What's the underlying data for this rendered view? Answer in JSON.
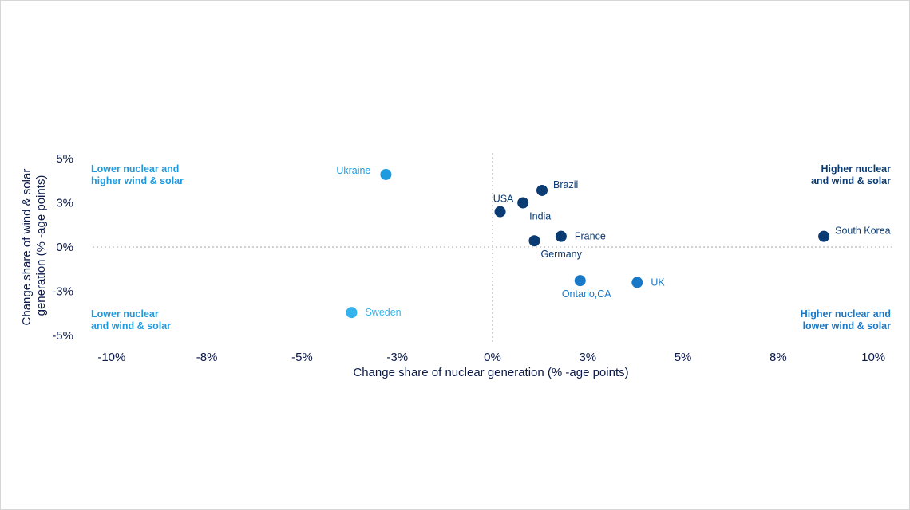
{
  "chart_data": {
    "type": "scatter",
    "xlabel": "Change share of nuclear generation (% -age points)",
    "ylabel": [
      "Change share of wind & solar",
      "generation (% -age points)"
    ],
    "xlim": [
      -10.5,
      10.5
    ],
    "ylim": [
      -5,
      5
    ],
    "grid": false,
    "zero_lines": "dotted",
    "x_ticks": [
      {
        "value": -10,
        "label": "-10%"
      },
      {
        "value": -7.5,
        "label": "-8%"
      },
      {
        "value": -5,
        "label": "-5%"
      },
      {
        "value": -2.5,
        "label": "-3%"
      },
      {
        "value": 0,
        "label": "0%"
      },
      {
        "value": 2.5,
        "label": "3%"
      },
      {
        "value": 5,
        "label": "5%"
      },
      {
        "value": 7.5,
        "label": "8%"
      },
      {
        "value": 10,
        "label": "10%"
      }
    ],
    "y_ticks": [
      {
        "value": 5,
        "label": "5%"
      },
      {
        "value": 2.5,
        "label": "3%"
      },
      {
        "value": 0,
        "label": "0%"
      },
      {
        "value": -2.5,
        "label": "-3%"
      },
      {
        "value": -5,
        "label": "-5%"
      }
    ],
    "points": [
      {
        "label": "Ukraine",
        "x": -2.8,
        "y": 4.1,
        "color": "#1e9be0",
        "label_pos": "left"
      },
      {
        "label": "Brazil",
        "x": 1.3,
        "y": 3.2,
        "color": "#0b3b73",
        "label_pos": "upper-right"
      },
      {
        "label": "USA",
        "x": 0.2,
        "y": 2.0,
        "color": "#0b3b73",
        "label_pos": "above"
      },
      {
        "label": "India",
        "x": 0.8,
        "y": 2.5,
        "color": "#0b3b73",
        "label_pos": "below-right"
      },
      {
        "label": "France",
        "x": 1.8,
        "y": 0.6,
        "color": "#0b3b73",
        "label_pos": "right"
      },
      {
        "label": "Germany",
        "x": 1.1,
        "y": 0.35,
        "color": "#0b3b73",
        "label_pos": "below-right"
      },
      {
        "label": "South Korea",
        "x": 8.7,
        "y": 0.6,
        "color": "#0b3b73",
        "label_pos": "upper-right"
      },
      {
        "label": "Ontario,CA",
        "x": 2.3,
        "y": -1.9,
        "color": "#1a79c7",
        "label_pos": "below"
      },
      {
        "label": "UK",
        "x": 3.8,
        "y": -2.0,
        "color": "#1a79c7",
        "label_pos": "right"
      },
      {
        "label": "Sweden",
        "x": -3.7,
        "y": -3.7,
        "color": "#35b3ee",
        "label_pos": "right"
      }
    ],
    "quadrant_labels": [
      {
        "lines": [
          "Lower nuclear and",
          "higher wind & solar"
        ],
        "position": "top-left",
        "color": "#1e9be0"
      },
      {
        "lines": [
          "Higher nuclear",
          "and wind & solar"
        ],
        "position": "top-right",
        "color": "#0b3b73"
      },
      {
        "lines": [
          "Lower nuclear",
          "and wind & solar"
        ],
        "position": "bottom-left",
        "color": "#1e9be0"
      },
      {
        "lines": [
          "Higher nuclear and",
          "lower wind & solar"
        ],
        "position": "bottom-right",
        "color": "#1a79c7"
      }
    ]
  }
}
